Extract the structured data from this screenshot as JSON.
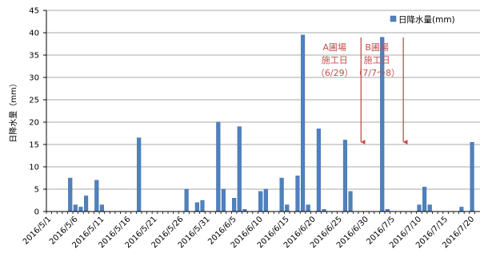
{
  "chart_data": {
    "type": "bar",
    "ylabel": "日降水量（mm）",
    "ylim": [
      0,
      45
    ],
    "yticks": [
      0,
      5,
      10,
      15,
      20,
      25,
      30,
      35,
      40,
      45
    ],
    "grid": true,
    "legend_position": "top-right",
    "legend_label": "日降水量(mm)",
    "bar_color": "#4f81bd",
    "annotation_color": "#c0504d",
    "x_ticks": [
      "2016/5/1",
      "2016/5/6",
      "2016/5/11",
      "2016/5/16",
      "2016/5/21",
      "2016/5/26",
      "2016/5/31",
      "2016/6/5",
      "2016/6/10",
      "2016/6/15",
      "2016/6/20",
      "2016/6/25",
      "2016/6/30",
      "2016/7/5",
      "2016/7/10",
      "2016/7/15",
      "2016/7/20"
    ],
    "points": [
      {
        "date": "2016/5/5",
        "value": 7.5
      },
      {
        "date": "2016/5/6",
        "value": 1.5
      },
      {
        "date": "2016/5/7",
        "value": 1.0
      },
      {
        "date": "2016/5/8",
        "value": 3.5
      },
      {
        "date": "2016/5/10",
        "value": 7.0
      },
      {
        "date": "2016/5/11",
        "value": 1.5
      },
      {
        "date": "2016/5/18",
        "value": 16.5
      },
      {
        "date": "2016/5/27",
        "value": 5.0
      },
      {
        "date": "2016/5/29",
        "value": 2.0
      },
      {
        "date": "2016/5/30",
        "value": 2.5
      },
      {
        "date": "2016/6/2",
        "value": 20.0
      },
      {
        "date": "2016/6/3",
        "value": 5.0
      },
      {
        "date": "2016/6/5",
        "value": 3.0
      },
      {
        "date": "2016/6/6",
        "value": 19.0
      },
      {
        "date": "2016/6/7",
        "value": 0.5
      },
      {
        "date": "2016/6/10",
        "value": 4.5
      },
      {
        "date": "2016/6/11",
        "value": 5.0
      },
      {
        "date": "2016/6/14",
        "value": 7.5
      },
      {
        "date": "2016/6/15",
        "value": 1.5
      },
      {
        "date": "2016/6/17",
        "value": 8.0
      },
      {
        "date": "2016/6/18",
        "value": 39.5
      },
      {
        "date": "2016/6/19",
        "value": 1.5
      },
      {
        "date": "2016/6/21",
        "value": 18.5
      },
      {
        "date": "2016/6/22",
        "value": 0.5
      },
      {
        "date": "2016/6/26",
        "value": 16.0
      },
      {
        "date": "2016/6/27",
        "value": 4.5
      },
      {
        "date": "2016/7/3",
        "value": 39.0
      },
      {
        "date": "2016/7/4",
        "value": 0.5
      },
      {
        "date": "2016/7/10",
        "value": 1.5
      },
      {
        "date": "2016/7/11",
        "value": 5.5
      },
      {
        "date": "2016/7/12",
        "value": 1.5
      },
      {
        "date": "2016/7/18",
        "value": 1.0
      },
      {
        "date": "2016/7/20",
        "value": 15.5
      }
    ],
    "annotations": [
      {
        "lines": [
          "A圃場",
          "施工日",
          "（6/29）"
        ],
        "date": "2016/6/29"
      },
      {
        "lines": [
          "B圃場",
          "施工日",
          "（7/7～8）"
        ],
        "date": "2016/7/7"
      }
    ]
  }
}
